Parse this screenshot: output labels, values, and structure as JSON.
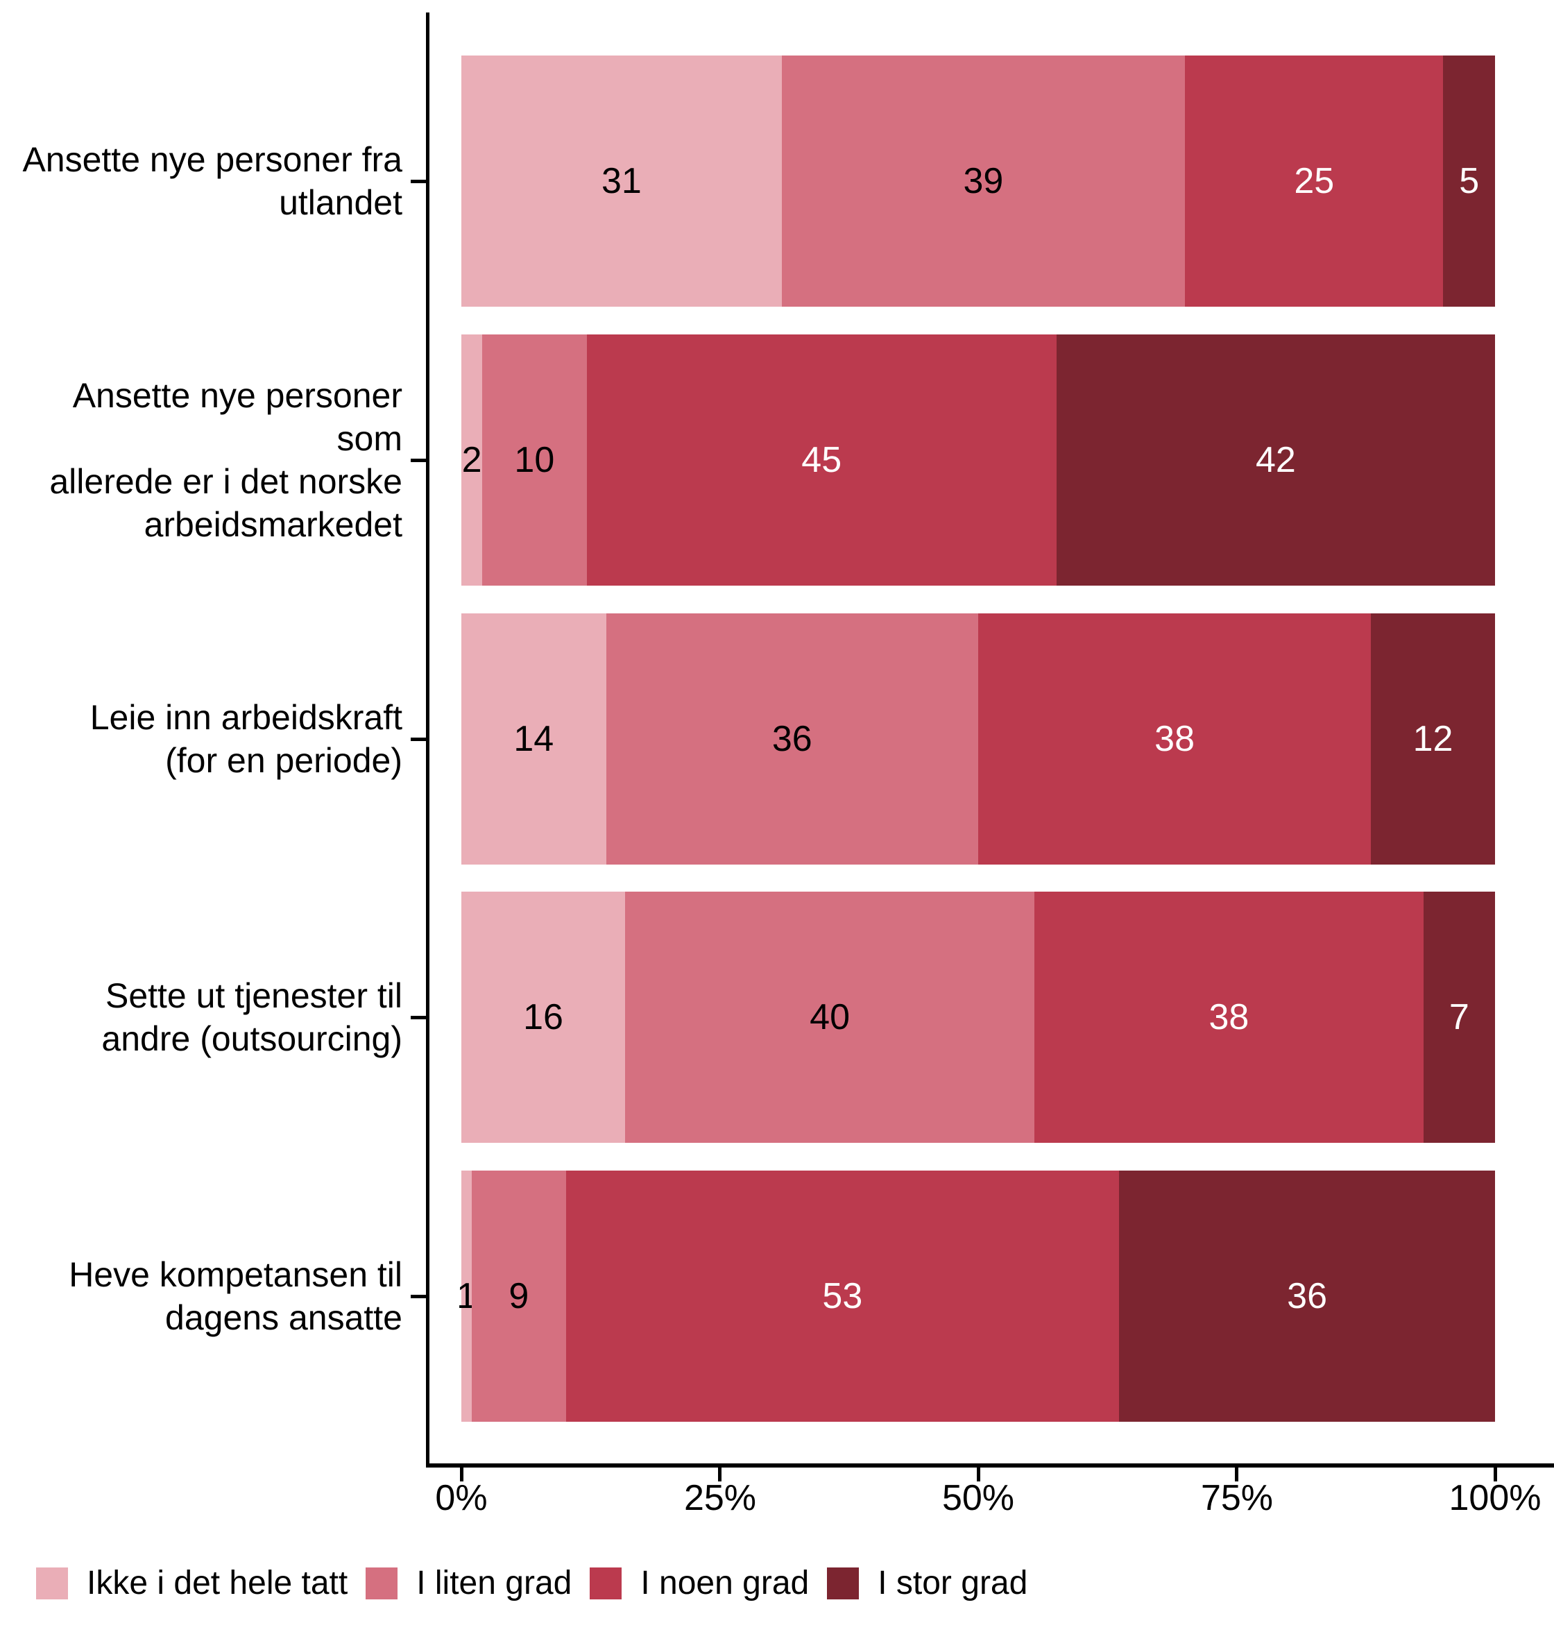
{
  "chart_data": {
    "type": "bar",
    "variant": "horizontal-stacked-percent",
    "title": "",
    "xlabel": "",
    "ylabel": "",
    "grid": false,
    "legend_position": "bottom",
    "categories": [
      "Ansette nye personer fra\nutlandet",
      "Ansette nye personer som\nallerede er i det norske\narbeidsmarkedet",
      "Leie inn arbeidskraft\n(for en periode)",
      "Sette ut tjenester til\nandre (outsourcing)",
      "Heve kompetansen til\ndagens ansatte"
    ],
    "series": [
      {
        "name": "Ikke i det hele tatt",
        "color": "#EAAEB7",
        "label_color": "#000000",
        "values": [
          31,
          2,
          14,
          16,
          1
        ]
      },
      {
        "name": "I liten grad",
        "color": "#D57080",
        "label_color": "#000000",
        "values": [
          39,
          10,
          36,
          40,
          9
        ]
      },
      {
        "name": "I noen grad",
        "color": "#BB3A4E",
        "label_color": "#FFFFFF",
        "values": [
          25,
          45,
          38,
          38,
          53
        ]
      },
      {
        "name": "I stor grad",
        "color": "#7C2530",
        "label_color": "#FFFFFF",
        "values": [
          5,
          42,
          12,
          7,
          36
        ]
      }
    ],
    "x_axis": {
      "range_percent": [
        0,
        100
      ],
      "tick_labels": [
        "0%",
        "25%",
        "50%",
        "75%",
        "100%"
      ]
    },
    "axis_color": "#000000",
    "background_color": "#FFFFFF"
  }
}
